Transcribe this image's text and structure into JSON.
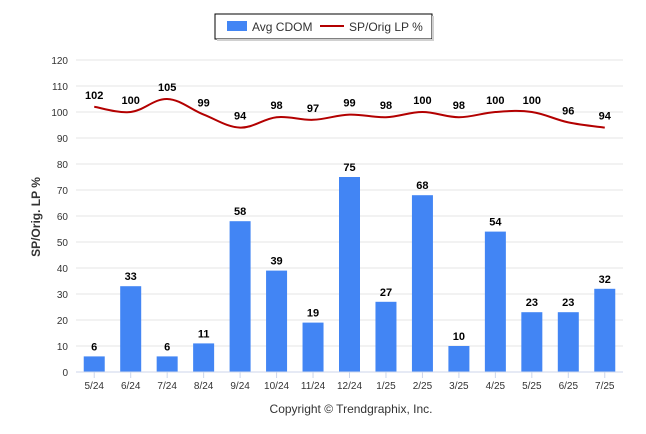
{
  "chart_data": {
    "type": "bar",
    "categories": [
      "5/24",
      "6/24",
      "7/24",
      "8/24",
      "9/24",
      "10/24",
      "11/24",
      "12/24",
      "1/25",
      "2/25",
      "3/25",
      "4/25",
      "5/25",
      "6/25",
      "7/25"
    ],
    "series": [
      {
        "name": "Avg CDOM",
        "kind": "bar",
        "color": "#4285f4",
        "values": [
          6,
          33,
          6,
          11,
          58,
          39,
          19,
          75,
          27,
          68,
          10,
          54,
          23,
          23,
          32
        ]
      },
      {
        "name": "SP/Orig LP %",
        "kind": "line",
        "color": "#b30000",
        "values": [
          102,
          100,
          105,
          99,
          94,
          98,
          97,
          99,
          98,
          100,
          98,
          100,
          100,
          96,
          94
        ]
      }
    ],
    "ylabel": "SP/Orig. LP %",
    "xlabel": "",
    "ylim": [
      0,
      120
    ],
    "yticks": [
      0,
      10,
      20,
      30,
      40,
      50,
      60,
      70,
      80,
      90,
      100,
      110,
      120
    ],
    "grid": true,
    "legend_position": "top"
  },
  "footer": {
    "copyright": "Copyright © Trendgraphix, Inc."
  }
}
